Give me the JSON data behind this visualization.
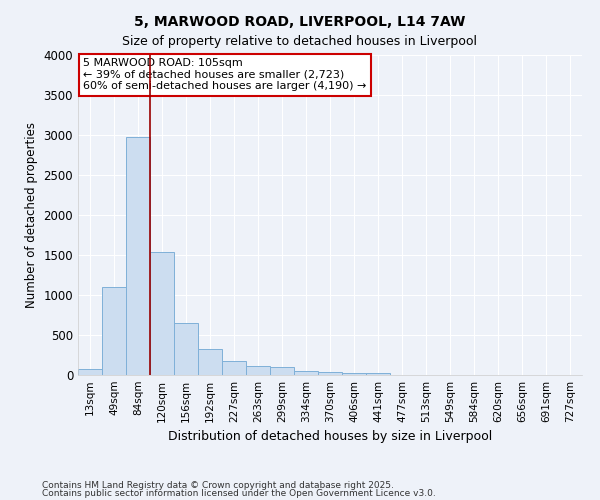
{
  "title": "5, MARWOOD ROAD, LIVERPOOL, L14 7AW",
  "subtitle": "Size of property relative to detached houses in Liverpool",
  "xlabel": "Distribution of detached houses by size in Liverpool",
  "ylabel": "Number of detached properties",
  "bar_labels": [
    "13sqm",
    "49sqm",
    "84sqm",
    "120sqm",
    "156sqm",
    "192sqm",
    "227sqm",
    "263sqm",
    "299sqm",
    "334sqm",
    "370sqm",
    "406sqm",
    "441sqm",
    "477sqm",
    "513sqm",
    "549sqm",
    "584sqm",
    "620sqm",
    "656sqm",
    "691sqm",
    "727sqm"
  ],
  "bar_values": [
    75,
    1100,
    2980,
    1540,
    650,
    320,
    180,
    115,
    100,
    55,
    40,
    20,
    30,
    5,
    3,
    2,
    1,
    1,
    0,
    0,
    0
  ],
  "bar_color": "#ccddf0",
  "bar_edge_color": "#7fb0d8",
  "vline_x": 2.5,
  "vline_color": "#990000",
  "ylim": [
    0,
    4000
  ],
  "yticks": [
    0,
    500,
    1000,
    1500,
    2000,
    2500,
    3000,
    3500,
    4000
  ],
  "annotation_text": "5 MARWOOD ROAD: 105sqm\n← 39% of detached houses are smaller (2,723)\n60% of semi-detached houses are larger (4,190) →",
  "annotation_box_color": "#ffffff",
  "annotation_box_edge_color": "#cc0000",
  "footer1": "Contains HM Land Registry data © Crown copyright and database right 2025.",
  "footer2": "Contains public sector information licensed under the Open Government Licence v3.0.",
  "background_color": "#eef2f9",
  "grid_color": "#ffffff",
  "spine_color": "#cccccc"
}
